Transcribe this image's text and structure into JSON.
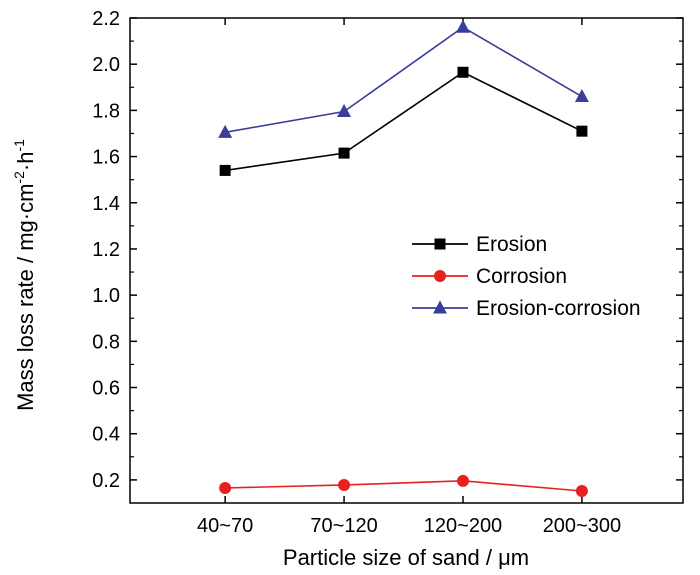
{
  "chart_data": {
    "type": "line",
    "categories": [
      "40~70",
      "70~120",
      "120~200",
      "200~300"
    ],
    "series": [
      {
        "name": "Erosion",
        "values": [
          1.54,
          1.615,
          1.965,
          1.71
        ],
        "color": "#000000",
        "marker": "square"
      },
      {
        "name": "Corrosion",
        "values": [
          0.165,
          0.178,
          0.196,
          0.152
        ],
        "color": "#e8211f",
        "marker": "circle"
      },
      {
        "name": "Erosion-corrosion",
        "values": [
          1.705,
          1.795,
          2.16,
          1.86
        ],
        "color": "#3a3d9c",
        "marker": "triangle"
      }
    ],
    "ylim": [
      0.1,
      2.2
    ],
    "yticks": [
      "0.2",
      "0.4",
      "0.6",
      "0.8",
      "1.0",
      "1.2",
      "1.4",
      "1.6",
      "1.8",
      "2.0",
      "2.2"
    ],
    "xlabel": "Particle size of sand / μm",
    "ylabel": {
      "base": "Mass loss rate / mg·cm",
      "sup1": "-2",
      "mid": "·h",
      "sup2": "-1"
    },
    "title": "",
    "grid": false,
    "legend_position": "center-right"
  }
}
